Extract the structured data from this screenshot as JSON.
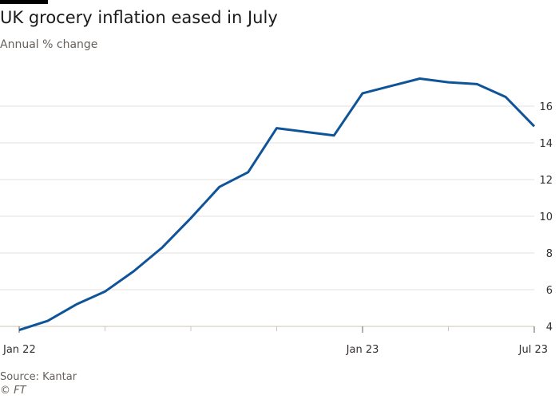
{
  "header": {
    "title": "UK grocery inflation eased in July",
    "subtitle": "Annual % change"
  },
  "footer": {
    "source": "Source: Kantar",
    "credit": "© FT"
  },
  "chart_data": {
    "type": "line",
    "title": "UK grocery inflation eased in July",
    "subtitle": "Annual % change",
    "x": [
      "2022-01",
      "2022-02",
      "2022-03",
      "2022-04",
      "2022-05",
      "2022-06",
      "2022-07",
      "2022-08",
      "2022-09",
      "2022-10",
      "2022-11",
      "2022-12",
      "2023-01",
      "2023-02",
      "2023-03",
      "2023-04",
      "2023-05",
      "2023-06",
      "2023-07"
    ],
    "series": [
      {
        "values": [
          3.8,
          4.3,
          5.2,
          5.9,
          7.0,
          8.3,
          9.9,
          11.6,
          12.4,
          14.8,
          14.6,
          14.4,
          16.7,
          17.1,
          17.5,
          17.3,
          17.2,
          16.5,
          14.9
        ],
        "color": "#0f5499"
      }
    ],
    "ylim": [
      4,
      17
    ],
    "yticks": [
      "4",
      "6",
      "8",
      "10",
      "12",
      "14",
      "16"
    ],
    "ytick_values": [
      4,
      6,
      8,
      10,
      12,
      14,
      16
    ],
    "xticks": [
      {
        "label": "Jan 22",
        "index": 0
      },
      {
        "label": "Jan 23",
        "index": 12
      },
      {
        "label": "Jul 23",
        "index": 18
      }
    ],
    "y_axis_side": "right",
    "grid": "horizontal",
    "xlabel": "",
    "ylabel": ""
  }
}
